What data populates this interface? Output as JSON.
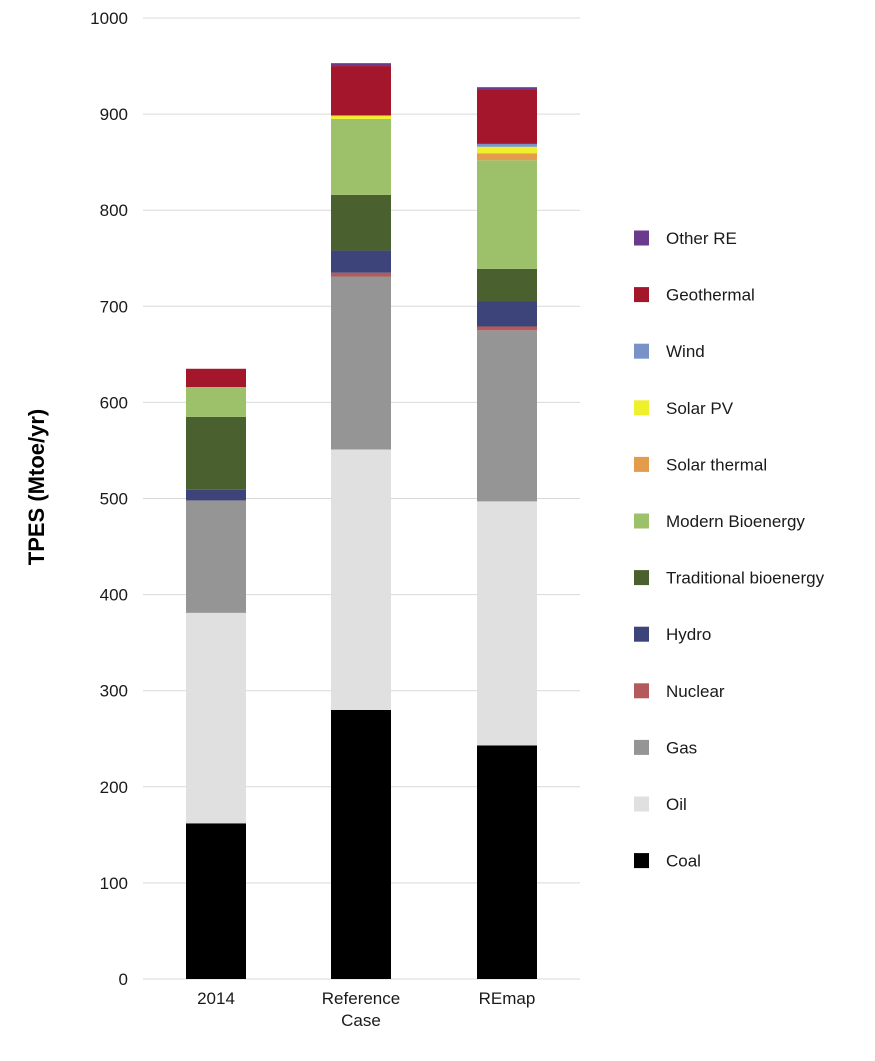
{
  "chart_data": {
    "type": "bar",
    "stacked": true,
    "title": "",
    "xlabel": "",
    "ylabel": "TPES (Mtoe/yr)",
    "ylim": [
      0,
      1000
    ],
    "yticks": [
      0,
      100,
      200,
      300,
      400,
      500,
      600,
      700,
      800,
      900,
      1000
    ],
    "grid": true,
    "legend_position": "right",
    "categories": [
      "2014",
      "Reference Case",
      "REmap"
    ],
    "series": [
      {
        "name": "Coal",
        "color": "#000000",
        "values": [
          162,
          280,
          243
        ]
      },
      {
        "name": "Oil",
        "color": "#e0e0e0",
        "values": [
          219,
          271,
          254
        ]
      },
      {
        "name": "Gas",
        "color": "#959595",
        "values": [
          117,
          180,
          178
        ]
      },
      {
        "name": "Nuclear",
        "color": "#b55a5a",
        "values": [
          0,
          4,
          4
        ]
      },
      {
        "name": "Hydro",
        "color": "#3c4479",
        "values": [
          11,
          23,
          26
        ]
      },
      {
        "name": "Traditional bioenergy",
        "color": "#4a602e",
        "values": [
          76,
          58,
          34
        ]
      },
      {
        "name": "Modern Bioenergy",
        "color": "#9dc16a",
        "values": [
          31,
          79,
          113
        ]
      },
      {
        "name": "Solar thermal",
        "color": "#e39b4c",
        "values": [
          0,
          0,
          7
        ]
      },
      {
        "name": "Solar PV",
        "color": "#f0ef2c",
        "values": [
          0,
          3,
          7
        ]
      },
      {
        "name": "Wind",
        "color": "#7a93c6",
        "values": [
          0,
          1,
          3
        ]
      },
      {
        "name": "Geothermal",
        "color": "#a3162b",
        "values": [
          19,
          51,
          57
        ]
      },
      {
        "name": "Other RE",
        "color": "#6a3a8c",
        "values": [
          0,
          3,
          2
        ]
      }
    ],
    "legend_order": [
      "Other RE",
      "Geothermal",
      "Wind",
      "Solar PV",
      "Solar thermal",
      "Modern Bioenergy",
      "Traditional bioenergy",
      "Hydro",
      "Nuclear",
      "Gas",
      "Oil",
      "Coal"
    ]
  }
}
